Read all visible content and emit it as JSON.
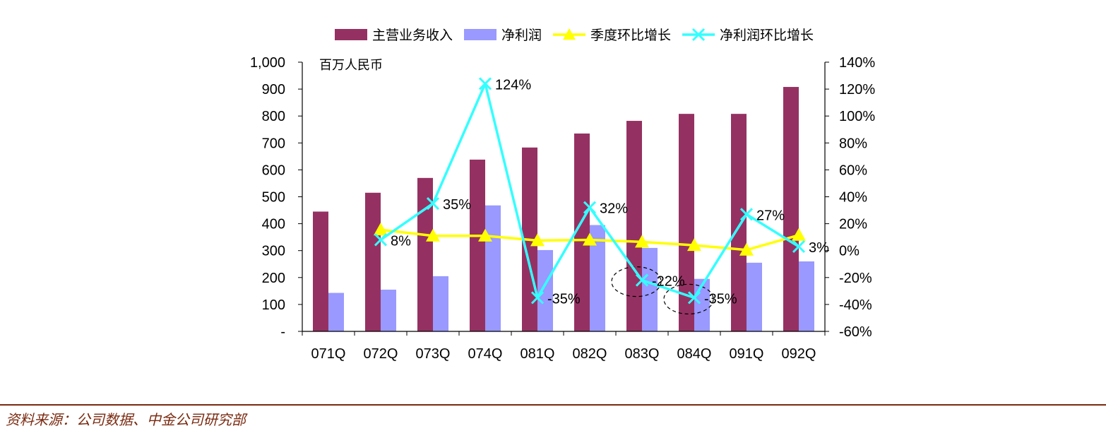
{
  "chart_data": {
    "type": "bar",
    "categories": [
      "071Q",
      "072Q",
      "073Q",
      "074Q",
      "081Q",
      "082Q",
      "083Q",
      "084Q",
      "091Q",
      "092Q"
    ],
    "series": [
      {
        "name": "主营业务收入",
        "kind": "bar",
        "axis": "left",
        "color": "#953162",
        "values": [
          445,
          515,
          570,
          638,
          683,
          735,
          782,
          808,
          808,
          908
        ]
      },
      {
        "name": "净利润",
        "kind": "bar",
        "axis": "left",
        "color": "#9999ff",
        "values": [
          143,
          155,
          205,
          468,
          302,
          395,
          310,
          195,
          255,
          260
        ]
      },
      {
        "name": "季度环比增长",
        "kind": "line",
        "axis": "right",
        "color": "#ffff00",
        "marker": "triangle",
        "values": [
          null,
          15.5,
          11,
          11,
          7.5,
          8,
          6.5,
          4,
          0.5,
          11.5
        ]
      },
      {
        "name": "净利润环比增长",
        "kind": "line",
        "axis": "right",
        "color": "#33ffff",
        "marker": "x",
        "values": [
          null,
          8,
          35,
          124,
          -35,
          32,
          -22,
          -35,
          27,
          3
        ],
        "labels": [
          null,
          "8%",
          "35%",
          "124%",
          "-35%",
          "32%",
          "-22%",
          "-35%",
          "27%",
          "3%"
        ]
      }
    ],
    "y_left": {
      "range": [
        0,
        1000
      ],
      "ticks": [
        "-",
        "100",
        "200",
        "300",
        "400",
        "500",
        "600",
        "700",
        "800",
        "900",
        "1,000"
      ]
    },
    "y_right": {
      "range": [
        -60,
        140
      ],
      "ticks": [
        "-60%",
        "-40%",
        "-20%",
        "0%",
        "20%",
        "40%",
        "60%",
        "80%",
        "100%",
        "120%",
        "140%"
      ]
    },
    "unit_label": "百万人民币",
    "highlighted_categories": [
      "083Q",
      "084Q"
    ],
    "legend_position": "top",
    "grid": false
  },
  "footer": {
    "source": "资料来源：公司数据、中金公司研究部"
  }
}
